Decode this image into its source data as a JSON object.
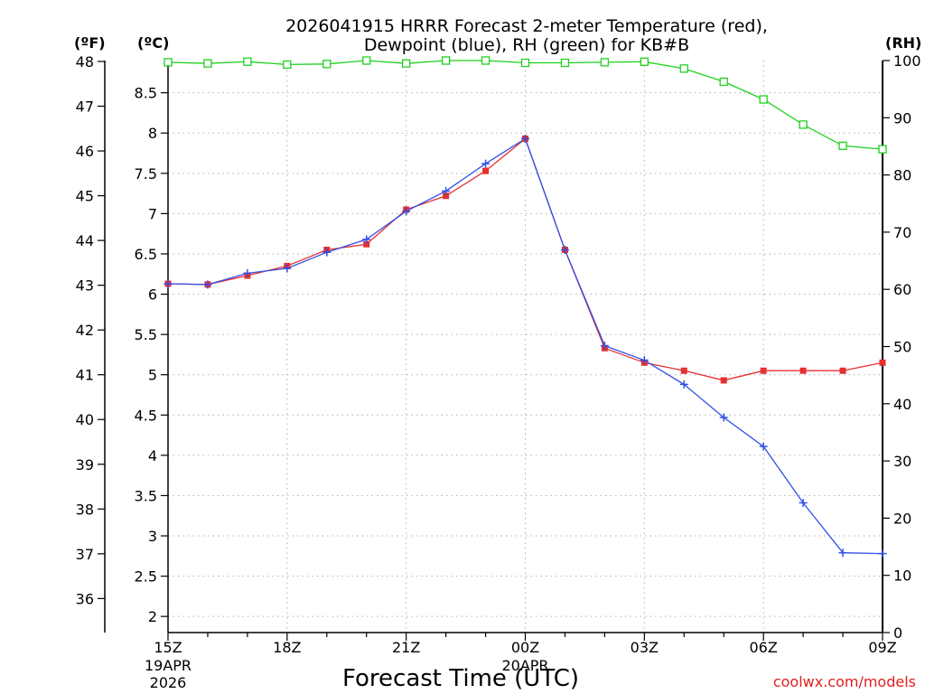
{
  "chart_data": {
    "type": "line",
    "title_line1": "2026041915 HRRR Forecast 2-meter Temperature (red),",
    "title_line2": "Dewpoint (blue), RH (green) for KB#B",
    "xlabel": "Forecast Time (UTC)",
    "credit": "coolwx.com/models",
    "unit_labels": {
      "fahrenheit": "(ºF)",
      "celsius": "(ºC)",
      "rh": "(RH)"
    },
    "x_hours": [
      0,
      1,
      2,
      3,
      4,
      5,
      6,
      7,
      8,
      9,
      10,
      11,
      12,
      13,
      14,
      15,
      16,
      17,
      18
    ],
    "x_tick_hours": [
      0,
      3,
      6,
      9,
      12,
      15,
      18
    ],
    "x_tick_labels": [
      "15Z",
      "18Z",
      "21Z",
      "00Z",
      "03Z",
      "06Z",
      "09Z"
    ],
    "x_date_labels": [
      {
        "hour": 0,
        "lines": [
          "19APR",
          "2026"
        ]
      },
      {
        "hour": 9,
        "lines": [
          "20APR"
        ]
      }
    ],
    "x_range": [
      0,
      18
    ],
    "celsius_axis": {
      "range": [
        1.8,
        8.9
      ],
      "ticks": [
        2,
        2.5,
        3,
        3.5,
        4,
        4.5,
        5,
        5.5,
        6,
        6.5,
        7,
        7.5,
        8,
        8.5
      ]
    },
    "fahrenheit_axis": {
      "ticks": [
        36,
        37,
        38,
        39,
        40,
        41,
        42,
        43,
        44,
        45,
        46,
        47,
        48
      ]
    },
    "rh_axis": {
      "range": [
        0,
        100
      ],
      "ticks": [
        0,
        10,
        20,
        30,
        40,
        50,
        60,
        70,
        80,
        90,
        100
      ]
    },
    "grid": true,
    "series": [
      {
        "name": "Temperature",
        "axis": "celsius",
        "color": "#e53030",
        "marker": "filled-square",
        "values": [
          6.13,
          6.12,
          6.23,
          6.35,
          6.55,
          6.62,
          7.05,
          7.22,
          7.53,
          7.93,
          6.55,
          5.33,
          5.15,
          5.05,
          4.93,
          5.05,
          5.05,
          5.05,
          5.15
        ]
      },
      {
        "name": "Dewpoint",
        "axis": "celsius",
        "color": "#2f4fe8",
        "marker": "plus",
        "values": [
          6.13,
          6.12,
          6.26,
          6.32,
          6.52,
          6.68,
          7.03,
          7.28,
          7.62,
          7.93,
          6.55,
          5.36,
          5.18,
          4.88,
          4.47,
          4.11,
          3.41,
          2.79,
          2.78
        ]
      },
      {
        "name": "RH",
        "axis": "rh",
        "color": "#1fd21f",
        "marker": "open-square",
        "values": [
          99.7,
          99.5,
          99.8,
          99.3,
          99.4,
          100,
          99.5,
          100,
          100,
          99.6,
          99.6,
          99.7,
          99.8,
          98.6,
          96.3,
          93.2,
          88.8,
          85.1,
          84.5
        ]
      }
    ]
  }
}
